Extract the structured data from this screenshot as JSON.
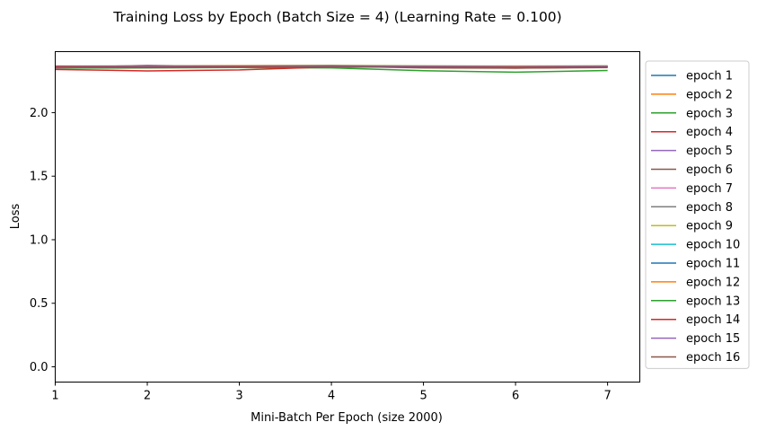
{
  "chart_data": {
    "type": "line",
    "title": "Training Loss by Epoch (Batch Size = 4) (Learning Rate = 0.100)",
    "xlabel": "Mini-Batch Per Epoch (size 2000)",
    "ylabel": "Loss",
    "xlim": [
      1,
      7.35
    ],
    "ylim": [
      -0.12,
      2.48
    ],
    "xticks": [
      "1",
      "2",
      "3",
      "4",
      "5",
      "6",
      "7"
    ],
    "yticks": [
      "0.0",
      "0.5",
      "1.0",
      "1.5",
      "2.0"
    ],
    "x": [
      1,
      2,
      3,
      4,
      5,
      6,
      7
    ],
    "grid": false,
    "legend_position": "outside-right",
    "series": [
      {
        "name": "epoch 1",
        "color": "#1f77b4",
        "values": [
          2.36,
          2.362,
          2.358,
          2.361,
          2.359,
          2.357,
          2.36
        ]
      },
      {
        "name": "epoch 2",
        "color": "#ff7f0e",
        "values": [
          2.365,
          2.364,
          2.366,
          2.363,
          2.365,
          2.364,
          2.362
        ]
      },
      {
        "name": "epoch 3",
        "color": "#2ca02c",
        "values": [
          2.35,
          2.352,
          2.355,
          2.352,
          2.33,
          2.318,
          2.332
        ]
      },
      {
        "name": "epoch 4",
        "color": "#d62728",
        "values": [
          2.34,
          2.328,
          2.336,
          2.36,
          2.356,
          2.35,
          2.358
        ]
      },
      {
        "name": "epoch 5",
        "color": "#9467bd",
        "values": [
          2.352,
          2.372,
          2.36,
          2.368,
          2.362,
          2.355,
          2.36
        ]
      },
      {
        "name": "epoch 6",
        "color": "#8c564b",
        "values": [
          2.358,
          2.355,
          2.362,
          2.365,
          2.352,
          2.35,
          2.355
        ]
      },
      {
        "name": "epoch 7",
        "color": "#e377c2",
        "values": [
          2.362,
          2.365,
          2.36,
          2.366,
          2.364,
          2.362,
          2.364
        ]
      },
      {
        "name": "epoch 8",
        "color": "#7f7f7f",
        "values": [
          2.366,
          2.368,
          2.37,
          2.372,
          2.368,
          2.366,
          2.368
        ]
      },
      {
        "name": "epoch 9",
        "color": "#bcbd22",
        "values": [
          2.364,
          2.366,
          2.364,
          2.368,
          2.366,
          2.364,
          2.366
        ]
      },
      {
        "name": "epoch 10",
        "color": "#17becf",
        "values": [
          2.36,
          2.362,
          2.364,
          2.362,
          2.36,
          2.362,
          2.36
        ]
      },
      {
        "name": "epoch 11",
        "color": "#1f77b4",
        "values": [
          2.362,
          2.36,
          2.362,
          2.364,
          2.362,
          2.36,
          2.362
        ]
      },
      {
        "name": "epoch 12",
        "color": "#ff7f0e",
        "values": [
          2.366,
          2.364,
          2.368,
          2.366,
          2.364,
          2.366,
          2.364
        ]
      },
      {
        "name": "epoch 13",
        "color": "#2ca02c",
        "values": [
          2.358,
          2.36,
          2.358,
          2.36,
          2.362,
          2.36,
          2.358
        ]
      },
      {
        "name": "epoch 14",
        "color": "#d62728",
        "values": [
          2.364,
          2.366,
          2.364,
          2.362,
          2.364,
          2.362,
          2.364
        ]
      },
      {
        "name": "epoch 15",
        "color": "#9467bd",
        "values": [
          2.36,
          2.364,
          2.362,
          2.366,
          2.364,
          2.362,
          2.364
        ]
      },
      {
        "name": "epoch 16",
        "color": "#8c564b",
        "values": [
          2.356,
          2.358,
          2.36,
          2.362,
          2.358,
          2.356,
          2.358
        ]
      }
    ]
  }
}
